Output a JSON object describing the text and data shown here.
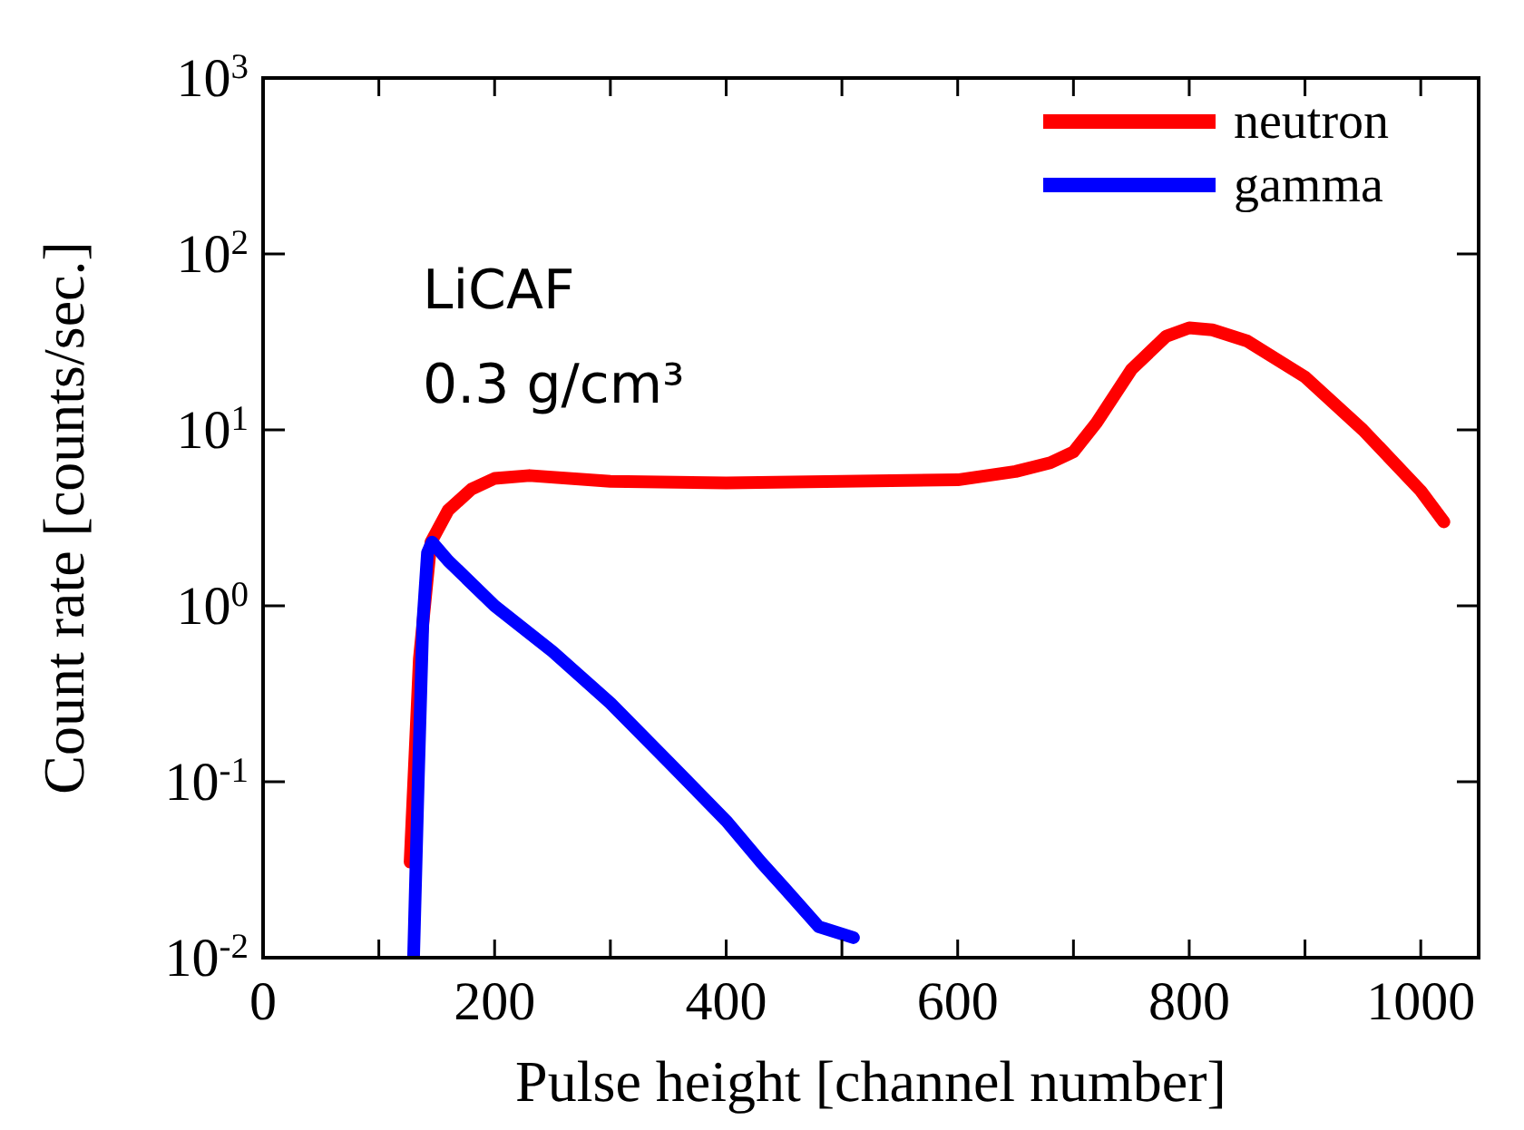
{
  "chart_data": {
    "type": "line",
    "xlabel": "Pulse height [channel number]",
    "ylabel": "Count rate [counts/sec.]",
    "log": "y",
    "legend": "top right",
    "xlim": [
      0,
      1050
    ],
    "ylim": [
      0.01,
      1000
    ],
    "xticks": [
      0,
      {
        "value": 100,
        "label": null
      },
      200,
      {
        "value": 300,
        "label": null
      },
      400,
      {
        "value": 500,
        "label": null
      },
      600,
      {
        "value": 700,
        "label": null
      },
      800,
      {
        "value": 900,
        "label": null
      },
      1000
    ],
    "yticks": [
      {
        "value": 0.01,
        "label": "10$^{-2}$"
      },
      {
        "value": 0.1,
        "label": "10$^{-1}$"
      },
      {
        "value": 1,
        "label": "10$^{0}$"
      },
      {
        "value": 10,
        "label": "10$^{1}$"
      },
      {
        "value": 100,
        "label": "10$^{2}$"
      },
      {
        "value": 1000,
        "label": "10$^{3}$"
      }
    ],
    "annotations": [
      "LiCAF",
      "0.3 g/cm³"
    ],
    "series": [
      {
        "name": "neutron",
        "color": "#ff0000",
        "x": [
          127,
          135,
          145,
          160,
          180,
          200,
          230,
          300,
          400,
          500,
          600,
          650,
          680,
          700,
          720,
          750,
          780,
          800,
          820,
          850,
          900,
          950,
          1000,
          1020
        ],
        "values": [
          0.035,
          0.5,
          2.3,
          3.5,
          4.6,
          5.3,
          5.5,
          5.1,
          5.0,
          5.1,
          5.2,
          5.8,
          6.5,
          7.5,
          11,
          22,
          34,
          38,
          37,
          32,
          20,
          10,
          4.5,
          3
        ]
      },
      {
        "name": "gamma",
        "color": "#0000ff",
        "x": [
          130,
          134,
          138,
          142,
          146,
          160,
          200,
          250,
          300,
          350,
          400,
          430,
          450,
          480,
          510
        ],
        "values": [
          0.01,
          0.1,
          0.8,
          2.0,
          2.3,
          1.8,
          1.0,
          0.55,
          0.28,
          0.13,
          0.06,
          0.035,
          0.025,
          0.015,
          0.013
        ]
      }
    ]
  }
}
